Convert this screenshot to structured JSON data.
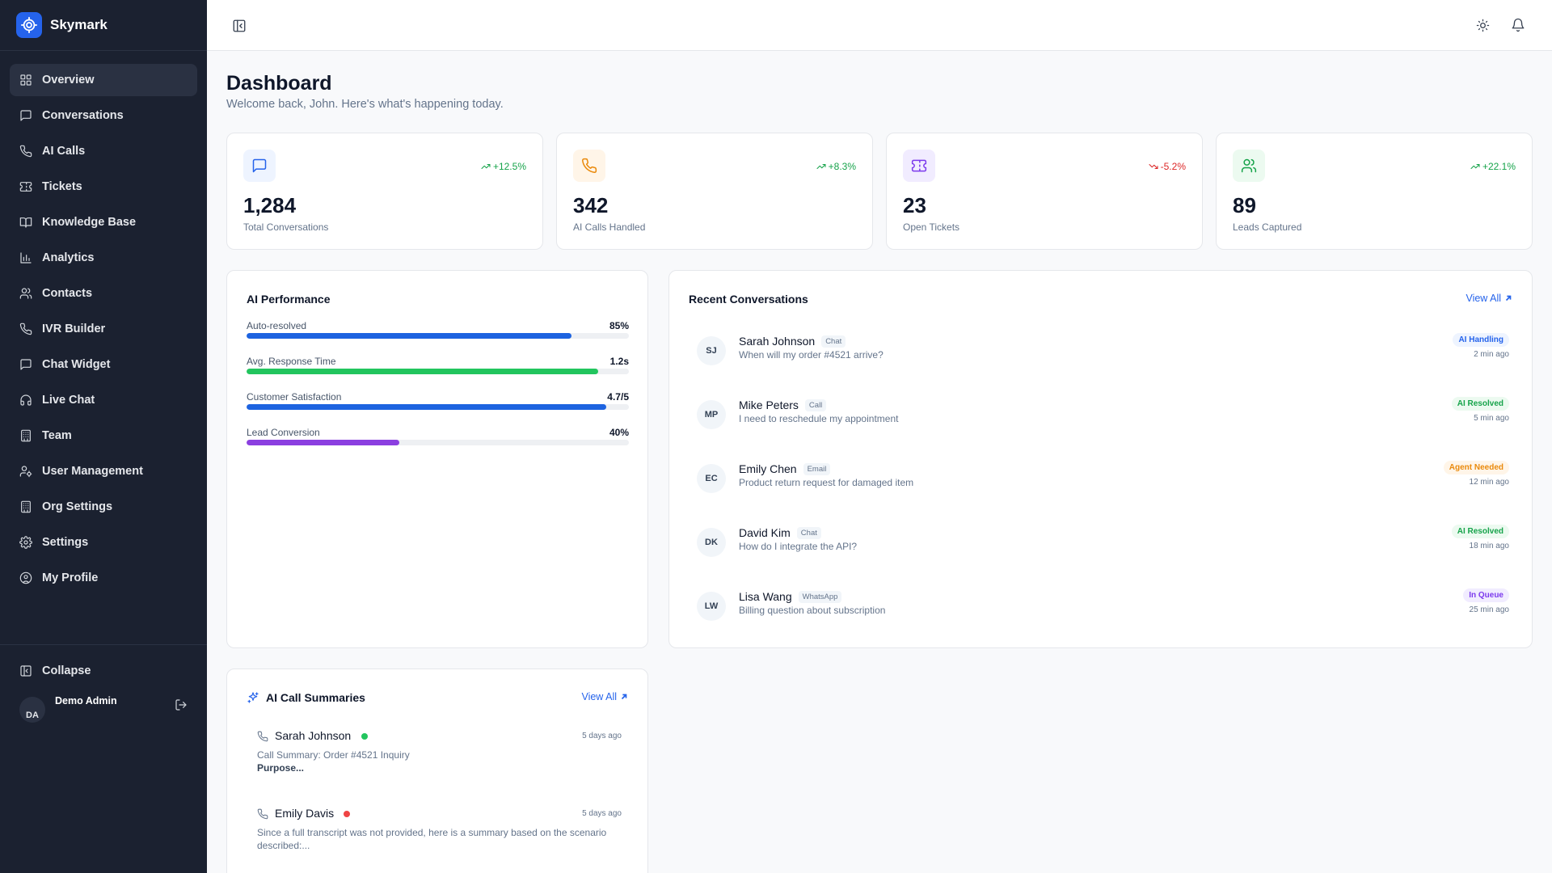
{
  "app": {
    "name": "Skymark"
  },
  "sidebar": {
    "items": [
      {
        "label": "Overview",
        "icon": "grid-icon",
        "active": true
      },
      {
        "label": "Conversations",
        "icon": "message-square-icon"
      },
      {
        "label": "AI Calls",
        "icon": "phone-icon"
      },
      {
        "label": "Tickets",
        "icon": "ticket-icon"
      },
      {
        "label": "Knowledge Base",
        "icon": "book-open-icon"
      },
      {
        "label": "Analytics",
        "icon": "bar-chart-icon"
      },
      {
        "label": "Contacts",
        "icon": "users-icon"
      },
      {
        "label": "IVR Builder",
        "icon": "phone-icon"
      },
      {
        "label": "Chat Widget",
        "icon": "message-square-icon"
      },
      {
        "label": "Live Chat",
        "icon": "headphones-icon"
      },
      {
        "label": "Team",
        "icon": "building-icon"
      },
      {
        "label": "User Management",
        "icon": "user-cog-icon"
      },
      {
        "label": "Org Settings",
        "icon": "building-icon"
      },
      {
        "label": "Settings",
        "icon": "gear-icon"
      },
      {
        "label": "My Profile",
        "icon": "user-circle-icon"
      }
    ],
    "collapse_label": "Collapse",
    "user": {
      "initials": "DA",
      "name": "Demo Admin"
    }
  },
  "header": {
    "title": "Dashboard",
    "subtitle": "Welcome back, John. Here's what's happening today."
  },
  "stats": [
    {
      "value": "1,284",
      "label": "Total Conversations",
      "change": "+12.5%",
      "trend": "up",
      "icon": "message-square-icon",
      "color": "#2563eb",
      "bg": "#eef4ff"
    },
    {
      "value": "342",
      "label": "AI Calls Handled",
      "change": "+8.3%",
      "trend": "up",
      "icon": "phone-icon",
      "color": "#ea8a0c",
      "bg": "#fff5e8"
    },
    {
      "value": "23",
      "label": "Open Tickets",
      "change": "-5.2%",
      "trend": "down",
      "icon": "ticket-icon",
      "color": "#7c3aed",
      "bg": "#f1ecff"
    },
    {
      "value": "89",
      "label": "Leads Captured",
      "change": "+22.1%",
      "trend": "up",
      "icon": "users-icon",
      "color": "#16a34a",
      "bg": "#ecfaf0"
    }
  ],
  "performance": {
    "title": "AI Performance",
    "metrics": [
      {
        "label": "Auto-resolved",
        "value": "85%",
        "fill": 0.85,
        "color": "#1d63e0"
      },
      {
        "label": "Avg. Response Time",
        "value": "1.2s",
        "fill": 0.92,
        "color": "#22c55e"
      },
      {
        "label": "Customer Satisfaction",
        "value": "4.7/5",
        "fill": 0.94,
        "color": "#1d63e0"
      },
      {
        "label": "Lead Conversion",
        "value": "40%",
        "fill": 0.4,
        "color": "#8b3fe0"
      }
    ]
  },
  "recent": {
    "title": "Recent Conversations",
    "view_all": "View All",
    "items": [
      {
        "initials": "SJ",
        "name": "Sarah Johnson",
        "channel": "Chat",
        "message": "When will my order #4521 arrive?",
        "status": "AI Handling",
        "status_color": "#2563eb",
        "status_bg": "#eef4ff",
        "time": "2 min ago"
      },
      {
        "initials": "MP",
        "name": "Mike Peters",
        "channel": "Call",
        "message": "I need to reschedule my appointment",
        "status": "AI Resolved",
        "status_color": "#16a34a",
        "status_bg": "#ecfaf0",
        "time": "5 min ago"
      },
      {
        "initials": "EC",
        "name": "Emily Chen",
        "channel": "Email",
        "message": "Product return request for damaged item",
        "status": "Agent Needed",
        "status_color": "#ea8a0c",
        "status_bg": "#fff5e8",
        "time": "12 min ago"
      },
      {
        "initials": "DK",
        "name": "David Kim",
        "channel": "Chat",
        "message": "How do I integrate the API?",
        "status": "AI Resolved",
        "status_color": "#16a34a",
        "status_bg": "#ecfaf0",
        "time": "18 min ago"
      },
      {
        "initials": "LW",
        "name": "Lisa Wang",
        "channel": "WhatsApp",
        "message": "Billing question about subscription",
        "status": "In Queue",
        "status_color": "#7c3aed",
        "status_bg": "#f1ecff",
        "time": "25 min ago"
      }
    ]
  },
  "summaries": {
    "title": "AI Call Summaries",
    "view_all": "View All",
    "items": [
      {
        "name": "Sarah Johnson",
        "dot_color": "#22c55e",
        "time": "5 days ago",
        "text": "Call Summary: Order #4521 Inquiry",
        "bold": "Purpose..."
      },
      {
        "name": "Emily Davis",
        "dot_color": "#ef4444",
        "time": "5 days ago",
        "text": "Since a full transcript was not provided, here is a summary based on the scenario described:...",
        "bold": ""
      }
    ]
  }
}
